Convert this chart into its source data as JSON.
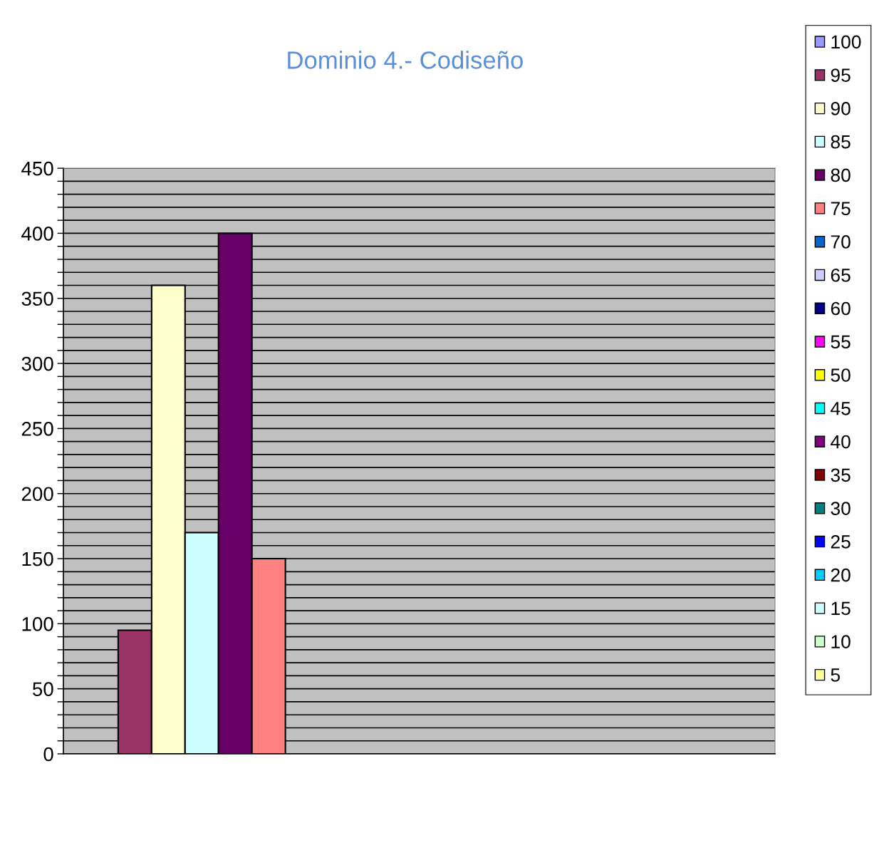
{
  "chart_data": {
    "type": "bar",
    "title": "Dominio 4.- Codiseño",
    "categories": [
      null
    ],
    "series": [
      {
        "name": "100",
        "color": "#9999ff",
        "values": [
          null
        ]
      },
      {
        "name": "95",
        "color": "#993366",
        "values": [
          95
        ]
      },
      {
        "name": "90",
        "color": "#ffffcc",
        "values": [
          360
        ]
      },
      {
        "name": "85",
        "color": "#ccffff",
        "values": [
          170
        ]
      },
      {
        "name": "80",
        "color": "#660066",
        "values": [
          400
        ]
      },
      {
        "name": "75",
        "color": "#ff8080",
        "values": [
          150
        ]
      },
      {
        "name": "70",
        "color": "#0066cc",
        "values": [
          null
        ]
      },
      {
        "name": "65",
        "color": "#ccccff",
        "values": [
          null
        ]
      },
      {
        "name": "60",
        "color": "#000080",
        "values": [
          null
        ]
      },
      {
        "name": "55",
        "color": "#ff00ff",
        "values": [
          null
        ]
      },
      {
        "name": "50",
        "color": "#ffff00",
        "values": [
          null
        ]
      },
      {
        "name": "45",
        "color": "#00ffff",
        "values": [
          null
        ]
      },
      {
        "name": "40",
        "color": "#800080",
        "values": [
          null
        ]
      },
      {
        "name": "35",
        "color": "#800000",
        "values": [
          null
        ]
      },
      {
        "name": "30",
        "color": "#008080",
        "values": [
          null
        ]
      },
      {
        "name": "25",
        "color": "#0000ff",
        "values": [
          null
        ]
      },
      {
        "name": "20",
        "color": "#00ccff",
        "values": [
          null
        ]
      },
      {
        "name": "15",
        "color": "#ccffff",
        "values": [
          null
        ]
      },
      {
        "name": "10",
        "color": "#ccffcc",
        "values": [
          null
        ]
      },
      {
        "name": "5",
        "color": "#ffff99",
        "values": [
          null
        ]
      }
    ],
    "ylim": [
      0,
      450
    ],
    "yticks": [
      0,
      {
        "value": 10,
        "label": null
      },
      {
        "value": 20,
        "label": null
      },
      {
        "value": 30,
        "label": null
      },
      {
        "value": 40,
        "label": null
      },
      50,
      {
        "value": 60,
        "label": null
      },
      {
        "value": 70,
        "label": null
      },
      {
        "value": 80,
        "label": null
      },
      {
        "value": 90,
        "label": null
      },
      100,
      {
        "value": 110,
        "label": null
      },
      {
        "value": 120,
        "label": null
      },
      {
        "value": 130,
        "label": null
      },
      {
        "value": 140,
        "label": null
      },
      150,
      {
        "value": 160,
        "label": null
      },
      {
        "value": 170,
        "label": null
      },
      {
        "value": 180,
        "label": null
      },
      {
        "value": 190,
        "label": null
      },
      200,
      {
        "value": 210,
        "label": null
      },
      {
        "value": 220,
        "label": null
      },
      {
        "value": 230,
        "label": null
      },
      {
        "value": 240,
        "label": null
      },
      250,
      {
        "value": 260,
        "label": null
      },
      {
        "value": 270,
        "label": null
      },
      {
        "value": 280,
        "label": null
      },
      {
        "value": 290,
        "label": null
      },
      300,
      {
        "value": 310,
        "label": null
      },
      {
        "value": 320,
        "label": null
      },
      {
        "value": 330,
        "label": null
      },
      {
        "value": 340,
        "label": null
      },
      350,
      {
        "value": 360,
        "label": null
      },
      {
        "value": 370,
        "label": null
      },
      {
        "value": 380,
        "label": null
      },
      {
        "value": 390,
        "label": null
      },
      400,
      {
        "value": 410,
        "label": null
      },
      {
        "value": 420,
        "label": null
      },
      {
        "value": 430,
        "label": null
      },
      {
        "value": 440,
        "label": null
      },
      450
    ],
    "grid": "y",
    "legend": "right"
  }
}
